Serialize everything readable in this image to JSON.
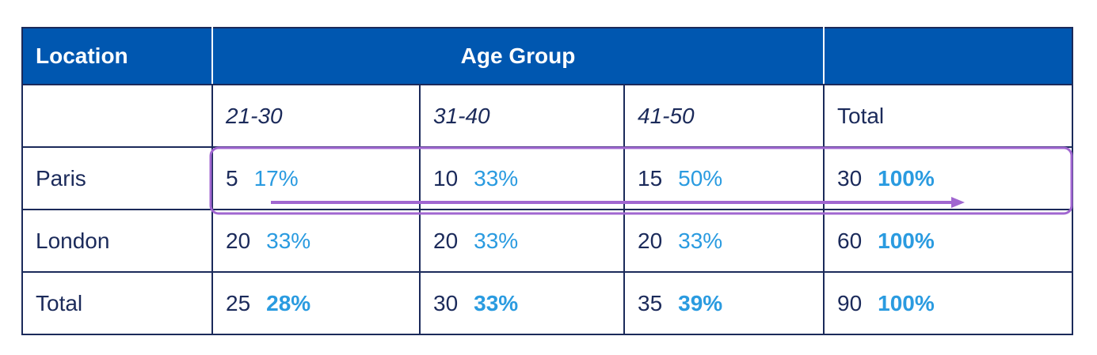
{
  "chart_data": {
    "type": "table",
    "headers": {
      "location": "Location",
      "age_group": "Age Group",
      "blank": ""
    },
    "subheaders": [
      "",
      "21-30",
      "31-40",
      "41-50",
      "Total"
    ],
    "rows": [
      {
        "label": "Paris",
        "cells": [
          {
            "count": "5",
            "pct": "17%"
          },
          {
            "count": "10",
            "pct": "33%"
          },
          {
            "count": "15",
            "pct": "50%"
          }
        ],
        "total": {
          "count": "30",
          "pct": "100%"
        }
      },
      {
        "label": "London",
        "cells": [
          {
            "count": "20",
            "pct": "33%"
          },
          {
            "count": "20",
            "pct": "33%"
          },
          {
            "count": "20",
            "pct": "33%"
          }
        ],
        "total": {
          "count": "60",
          "pct": "100%"
        }
      },
      {
        "label": "Total",
        "cells": [
          {
            "count": "25",
            "pct": "28%"
          },
          {
            "count": "30",
            "pct": "33%"
          },
          {
            "count": "35",
            "pct": "39%"
          }
        ],
        "total": {
          "count": "90",
          "pct": "100%"
        }
      }
    ],
    "highlight": {
      "row": "Paris",
      "color": "#a066d0",
      "arrow_direction": "right"
    },
    "colors": {
      "header_bg": "#0057b0",
      "text": "#1b2a5a",
      "percent": "#2a9be0"
    }
  }
}
